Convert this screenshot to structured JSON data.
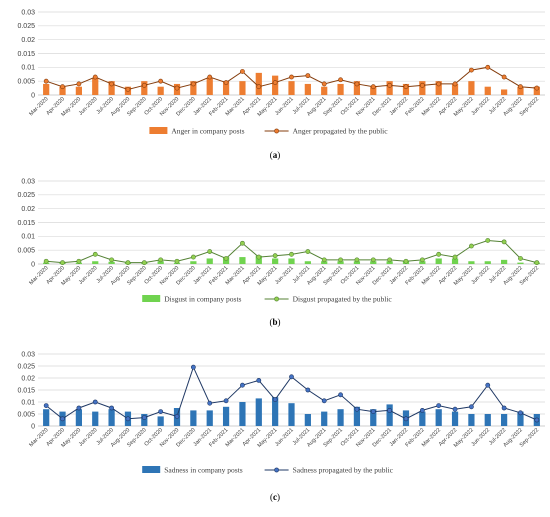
{
  "chart_data": [
    {
      "type": "bar+line",
      "caption": "(a)",
      "caption_letter": "a",
      "categories": [
        "Mar-2020",
        "Apr-2020",
        "May-2020",
        "Jun-2020",
        "Jul-2020",
        "Aug-2020",
        "Sep-2020",
        "Oct-2020",
        "Nov-2020",
        "Dec-2020",
        "Jan-2021",
        "Feb-2021",
        "Mar-2021",
        "Apr-2021",
        "May-2021",
        "Jun-2021",
        "Jul-2021",
        "Aug-2021",
        "Sep-2021",
        "Oct-2021",
        "Nov-2021",
        "Dec-2021",
        "Jan-2022",
        "Feb-2022",
        "Mar-2022",
        "Apr-2022",
        "May-2022",
        "Jun-2022",
        "Jul-2022",
        "Aug-2022",
        "Sep-2022"
      ],
      "ylim": [
        0,
        0.03
      ],
      "yticks": [
        "0",
        "0.005",
        "0.01",
        "0.015",
        "0.02",
        "0.025",
        "0.03"
      ],
      "grid": true,
      "legend_position": "bottom",
      "bar_color": "#ED7D31",
      "line_color": "#843C0C",
      "marker_fill": "#ED7D31",
      "series": [
        {
          "name": "Anger in company posts",
          "kind": "bar",
          "values": [
            0.004,
            0.003,
            0.003,
            0.006,
            0.005,
            0.003,
            0.005,
            0.003,
            0.004,
            0.005,
            0.006,
            0.005,
            0.005,
            0.008,
            0.007,
            0.005,
            0.004,
            0.003,
            0.004,
            0.005,
            0.003,
            0.005,
            0.004,
            0.005,
            0.005,
            0.004,
            0.005,
            0.003,
            0.002,
            0.003,
            0.003
          ]
        },
        {
          "name": "Anger propagated by the public",
          "kind": "line",
          "values": [
            0.005,
            0.003,
            0.004,
            0.0065,
            0.004,
            0.002,
            0.0035,
            0.005,
            0.0025,
            0.004,
            0.0065,
            0.0045,
            0.0085,
            0.003,
            0.0045,
            0.0065,
            0.007,
            0.004,
            0.0055,
            0.004,
            0.003,
            0.0035,
            0.003,
            0.0035,
            0.004,
            0.004,
            0.009,
            0.01,
            0.0065,
            0.003,
            0.0025
          ]
        }
      ]
    },
    {
      "type": "bar+line",
      "caption": "(b)",
      "caption_letter": "b",
      "categories": [
        "Mar-2020",
        "Apr-2020",
        "May-2020",
        "Jun-2020",
        "Jul-2020",
        "Aug-2020",
        "Sep-2020",
        "Oct-2020",
        "Nov-2020",
        "Dec-2020",
        "Jan-2021",
        "Feb-2021",
        "Mar-2021",
        "Apr-2021",
        "May-2021",
        "Jun-2021",
        "Jul-2021",
        "Aug-2021",
        "Sep-2021",
        "Oct-2021",
        "Nov-2021",
        "Dec-2021",
        "Jan-2022",
        "Feb-2022",
        "Mar-2022",
        "Apr-2022",
        "May-2022",
        "Jun-2022",
        "Jul-2022",
        "Aug-2022",
        "Sep-2022"
      ],
      "ylim": [
        0,
        0.03
      ],
      "yticks": [
        "0",
        "0.005",
        "0.01",
        "0.015",
        "0.02",
        "0.025",
        "0.03"
      ],
      "grid": true,
      "legend_position": "bottom",
      "bar_color": "#70D34F",
      "line_color": "#548235",
      "marker_fill": "#92D050",
      "series": [
        {
          "name": "Disgust in company posts",
          "kind": "bar",
          "values": [
            0.0005,
            0.0005,
            0.0005,
            0.001,
            0.0008,
            0.0005,
            0.0005,
            0.001,
            0.0005,
            0.001,
            0.002,
            0.0025,
            0.0025,
            0.003,
            0.002,
            0.002,
            0.001,
            0.001,
            0.001,
            0.001,
            0.001,
            0.001,
            0.001,
            0.001,
            0.002,
            0.002,
            0.001,
            0.001,
            0.0015,
            0.0005,
            0.0005
          ]
        },
        {
          "name": "Disgust propagated by the public",
          "kind": "line",
          "values": [
            0.001,
            0.0005,
            0.001,
            0.0035,
            0.0015,
            0.0005,
            0.0005,
            0.0015,
            0.001,
            0.0025,
            0.0045,
            0.002,
            0.0075,
            0.0025,
            0.003,
            0.0035,
            0.0045,
            0.0015,
            0.0015,
            0.0015,
            0.0015,
            0.0015,
            0.001,
            0.0015,
            0.0035,
            0.0025,
            0.0065,
            0.0085,
            0.008,
            0.002,
            0.0005
          ]
        }
      ]
    },
    {
      "type": "bar+line",
      "caption": "(c)",
      "caption_letter": "c",
      "categories": [
        "Mar-2020",
        "Apr-2020",
        "May-2020",
        "Jun-2020",
        "Jul-2020",
        "Aug-2020",
        "Sep-2020",
        "Oct-2020",
        "Nov-2020",
        "Dec-2020",
        "Jan-2021",
        "Feb-2021",
        "Mar-2021",
        "Apr-2021",
        "May-2021",
        "Jun-2021",
        "Jul-2021",
        "Aug-2021",
        "Sep-2021",
        "Oct-2021",
        "Nov-2021",
        "Dec-2021",
        "Jan-2022",
        "Feb-2022",
        "Mar-2022",
        "Apr-2022",
        "May-2022",
        "Jun-2022",
        "Jul-2022",
        "Aug-2022",
        "Sep-2022"
      ],
      "ylim": [
        0,
        0.03
      ],
      "yticks": [
        "0",
        "0.005",
        "0.01",
        "0.015",
        "0.02",
        "0.025",
        "0.03"
      ],
      "grid": true,
      "legend_position": "bottom",
      "bar_color": "#2E75B6",
      "line_color": "#1F3864",
      "marker_fill": "#4472C4",
      "series": [
        {
          "name": "Sadness in company posts",
          "kind": "bar",
          "values": [
            0.007,
            0.006,
            0.007,
            0.006,
            0.007,
            0.006,
            0.005,
            0.004,
            0.0075,
            0.0065,
            0.0065,
            0.008,
            0.01,
            0.0115,
            0.012,
            0.0095,
            0.005,
            0.006,
            0.007,
            0.008,
            0.007,
            0.009,
            0.0065,
            0.006,
            0.007,
            0.006,
            0.005,
            0.005,
            0.005,
            0.006,
            0.005
          ]
        },
        {
          "name": "Sadness propagated by the public",
          "kind": "line",
          "values": [
            0.0085,
            0.003,
            0.0075,
            0.01,
            0.0075,
            0.003,
            0.0035,
            0.006,
            0.004,
            0.0245,
            0.0095,
            0.0105,
            0.017,
            0.019,
            0.011,
            0.0205,
            0.015,
            0.0105,
            0.013,
            0.007,
            0.006,
            0.0065,
            0.003,
            0.0065,
            0.0085,
            0.007,
            0.008,
            0.017,
            0.0075,
            0.0055,
            0.0025
          ]
        }
      ]
    }
  ]
}
